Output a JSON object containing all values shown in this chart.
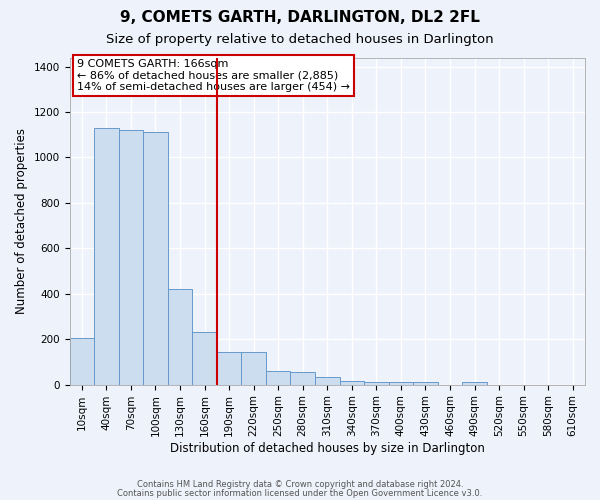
{
  "title": "9, COMETS GARTH, DARLINGTON, DL2 2FL",
  "subtitle": "Size of property relative to detached houses in Darlington",
  "xlabel": "Distribution of detached houses by size in Darlington",
  "ylabel": "Number of detached properties",
  "bin_labels": [
    "10sqm",
    "40sqm",
    "70sqm",
    "100sqm",
    "130sqm",
    "160sqm",
    "190sqm",
    "220sqm",
    "250sqm",
    "280sqm",
    "310sqm",
    "340sqm",
    "370sqm",
    "400sqm",
    "430sqm",
    "460sqm",
    "490sqm",
    "520sqm",
    "550sqm",
    "580sqm",
    "610sqm"
  ],
  "bar_values": [
    205,
    1130,
    1120,
    1110,
    420,
    230,
    145,
    145,
    60,
    58,
    35,
    18,
    12,
    12,
    12,
    0,
    12,
    0,
    0,
    0,
    0
  ],
  "bar_color": "#cdddf0",
  "bar_edge_color": "#6699cc",
  "ylim": [
    0,
    1440
  ],
  "yticks": [
    0,
    200,
    400,
    600,
    800,
    1000,
    1200,
    1400
  ],
  "property_line_x": 6.0,
  "property_line_label": "9 COMETS GARTH: 166sqm",
  "annotation_line1": "← 86% of detached houses are smaller (2,885)",
  "annotation_line2": "14% of semi-detached houses are larger (454) →",
  "footnote1": "Contains HM Land Registry data © Crown copyright and database right 2024.",
  "footnote2": "Contains public sector information licensed under the Open Government Licence v3.0.",
  "background_color": "#eef2fa",
  "grid_color": "#ffffff",
  "title_fontsize": 11,
  "subtitle_fontsize": 9.5,
  "label_fontsize": 8.5,
  "tick_fontsize": 7.5,
  "annot_fontsize": 8
}
